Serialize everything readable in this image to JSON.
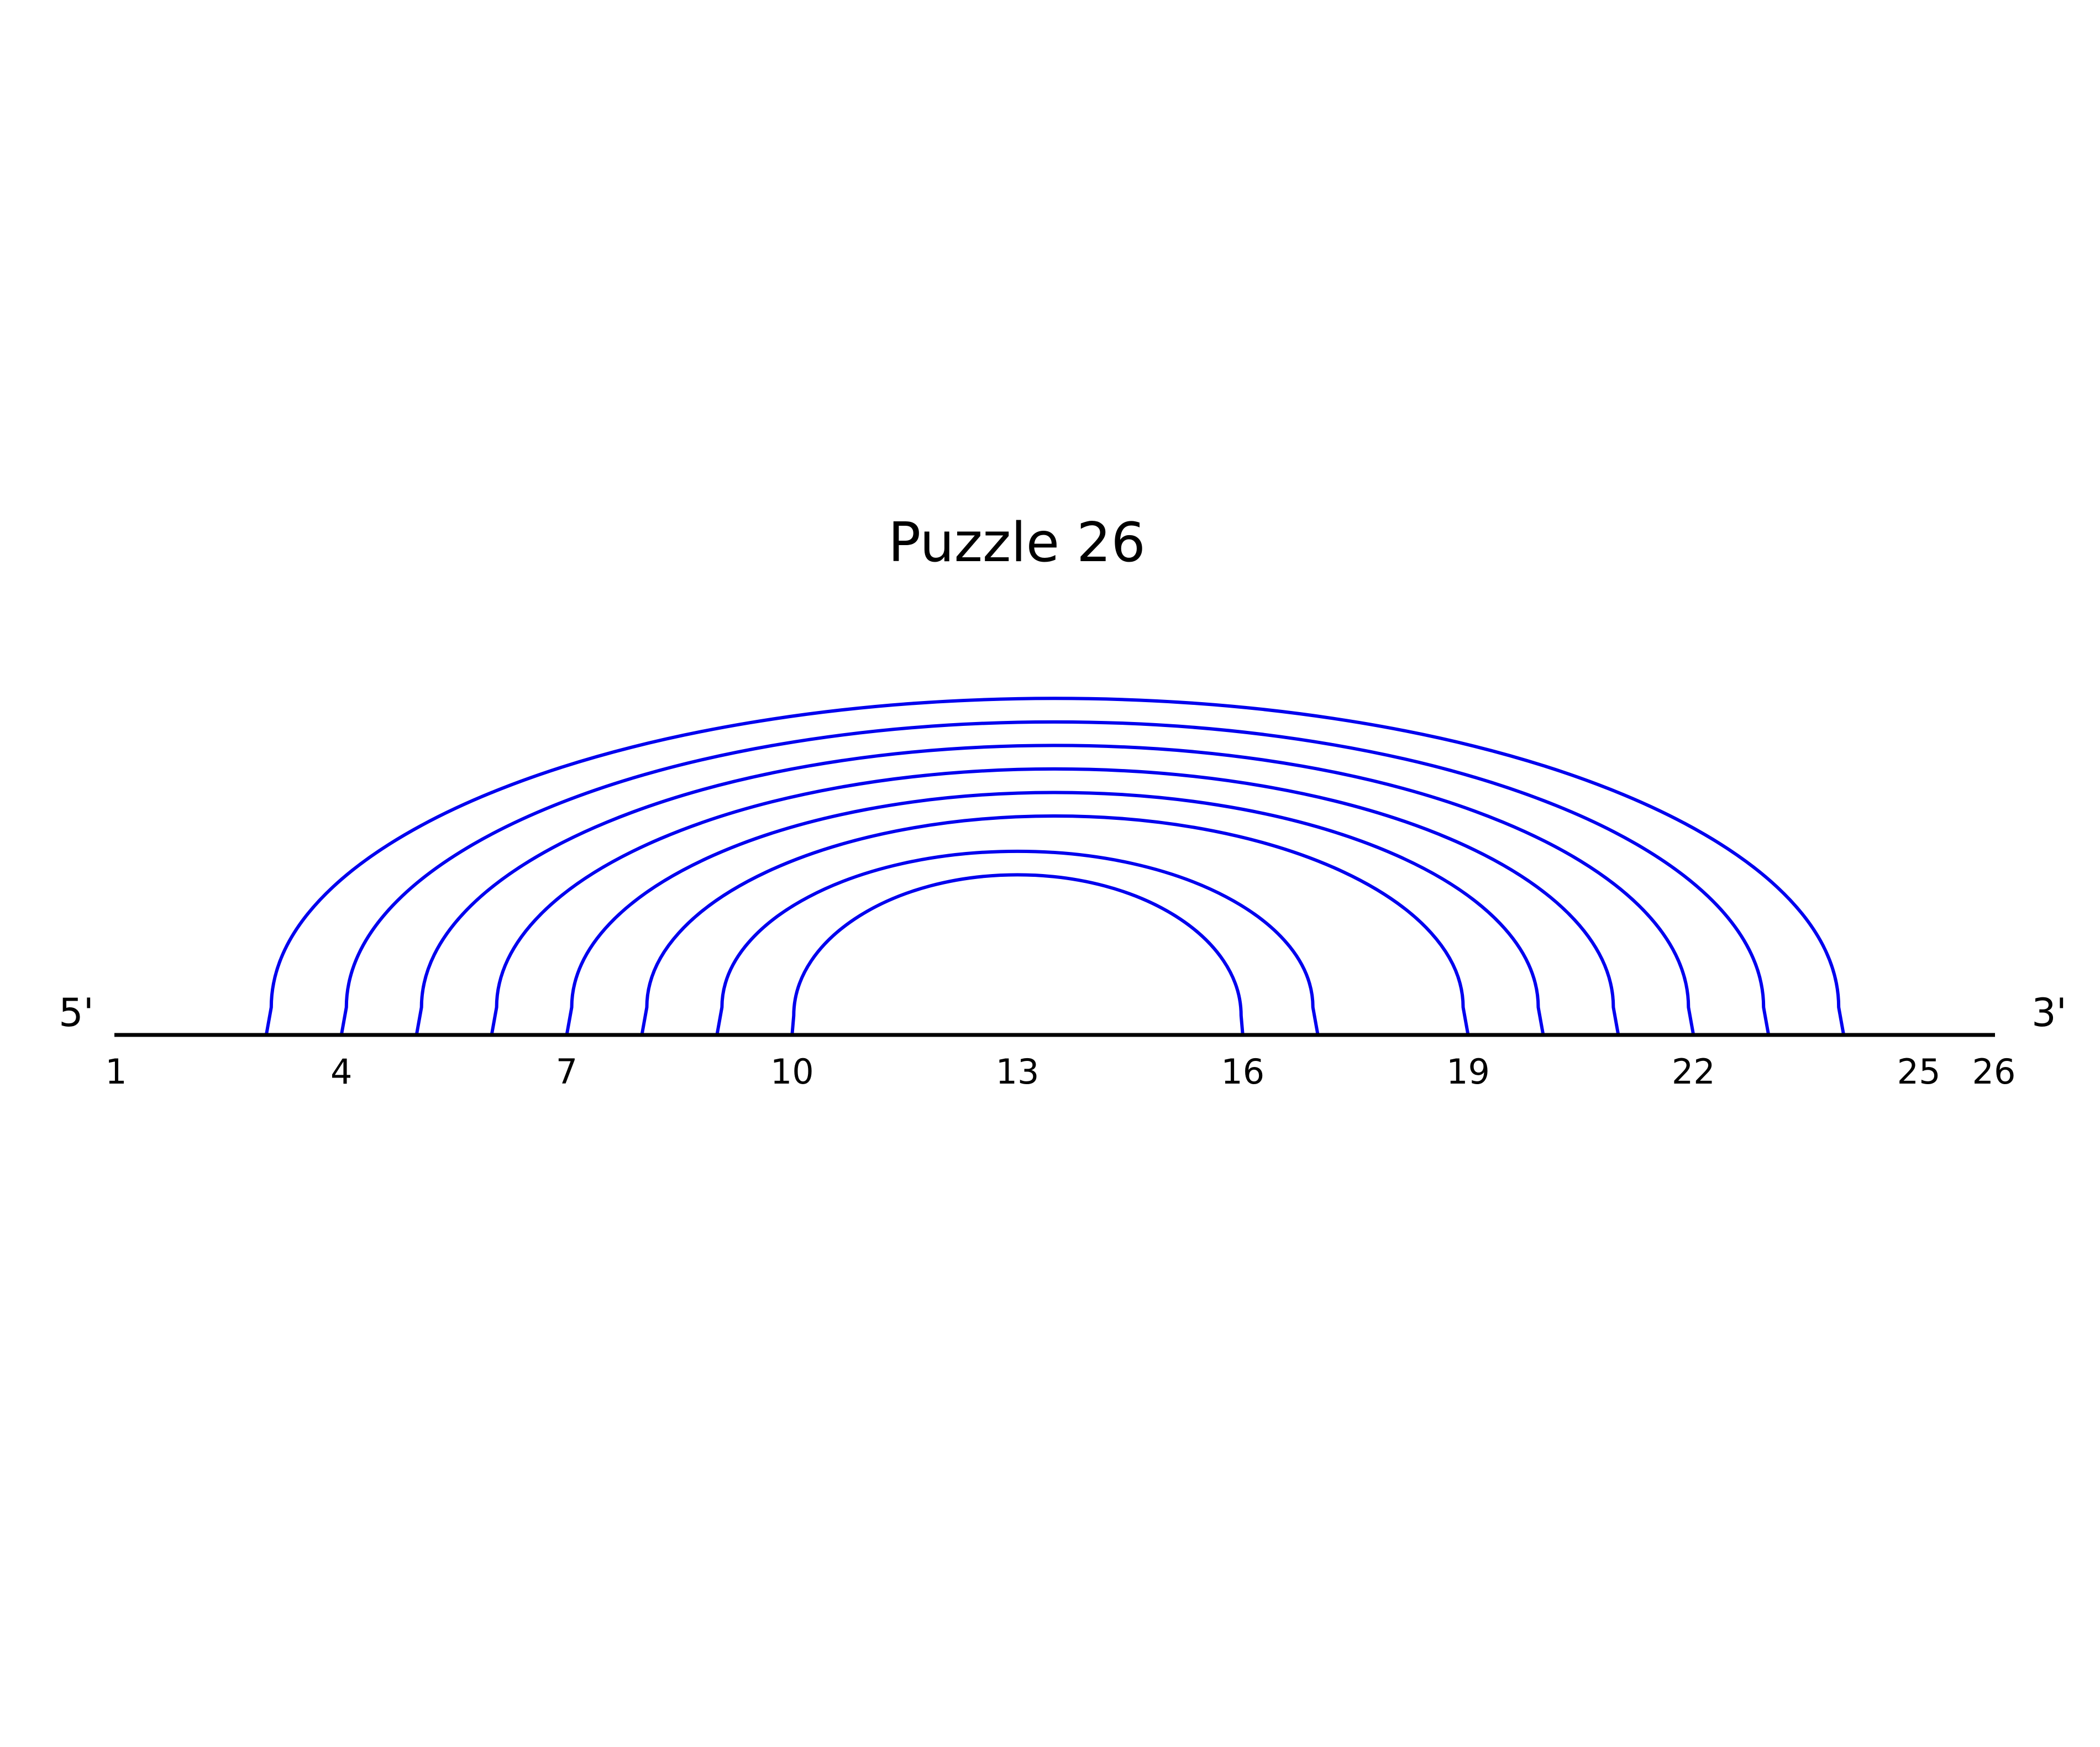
{
  "title": "Puzzle 26",
  "five_prime_label": "5'",
  "three_prime_label": "3'",
  "chart_data": {
    "type": "arc-diagram",
    "sequence_length": 26,
    "x_range": [
      1,
      26
    ],
    "tick_labels": [
      "1",
      "4",
      "7",
      "10",
      "13",
      "16",
      "19",
      "22",
      "25",
      "26"
    ],
    "ticks": [
      1,
      4,
      7,
      10,
      13,
      16,
      19,
      22,
      25,
      26
    ],
    "pairs": [
      [
        3,
        24
      ],
      [
        4,
        23
      ],
      [
        5,
        22
      ],
      [
        6,
        21
      ],
      [
        7,
        20
      ],
      [
        8,
        19
      ],
      [
        9,
        17
      ],
      [
        10,
        16
      ]
    ],
    "arc_color": "#0000ee",
    "backbone_color": "#000000"
  }
}
